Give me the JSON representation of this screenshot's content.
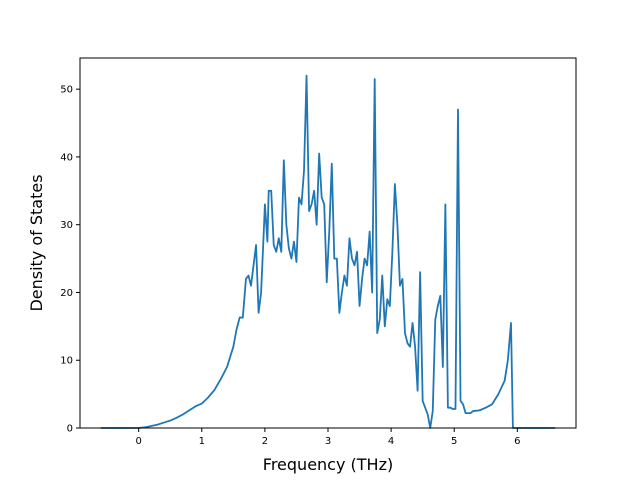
{
  "chart_data": {
    "type": "line",
    "title": "",
    "xlabel": "Frequency (THz)",
    "ylabel": "Density of States",
    "xlim": [
      -0.93,
      6.93
    ],
    "ylim": [
      0,
      54.6
    ],
    "xticks": [
      0,
      1,
      2,
      3,
      4,
      5,
      6
    ],
    "yticks": [
      0,
      10,
      20,
      30,
      40,
      50
    ],
    "grid": false,
    "legend": "none",
    "colors": {
      "line": "#1f77b4",
      "axes": "#000000",
      "background": "#ffffff"
    },
    "series": [
      {
        "color": "#1f77b4",
        "x": [
          -0.6,
          -0.2,
          0.0,
          0.1,
          0.2,
          0.3,
          0.4,
          0.5,
          0.6,
          0.7,
          0.8,
          0.9,
          1.0,
          1.1,
          1.2,
          1.3,
          1.4,
          1.5,
          1.55,
          1.6,
          1.65,
          1.7,
          1.74,
          1.78,
          1.82,
          1.86,
          1.9,
          1.94,
          1.98,
          2.0,
          2.04,
          2.06,
          2.1,
          2.14,
          2.18,
          2.22,
          2.26,
          2.3,
          2.34,
          2.38,
          2.42,
          2.46,
          2.5,
          2.54,
          2.58,
          2.62,
          2.66,
          2.7,
          2.74,
          2.78,
          2.82,
          2.86,
          2.9,
          2.94,
          2.98,
          3.02,
          3.06,
          3.1,
          3.14,
          3.18,
          3.22,
          3.26,
          3.3,
          3.34,
          3.38,
          3.42,
          3.46,
          3.5,
          3.54,
          3.58,
          3.62,
          3.66,
          3.7,
          3.74,
          3.78,
          3.82,
          3.86,
          3.9,
          3.94,
          3.98,
          4.02,
          4.06,
          4.1,
          4.14,
          4.18,
          4.22,
          4.26,
          4.3,
          4.34,
          4.38,
          4.42,
          4.46,
          4.5,
          4.54,
          4.58,
          4.62,
          4.66,
          4.7,
          4.74,
          4.78,
          4.82,
          4.86,
          4.9,
          4.94,
          4.98,
          5.02,
          5.06,
          5.1,
          5.14,
          5.18,
          5.22,
          5.26,
          5.3,
          5.4,
          5.5,
          5.6,
          5.7,
          5.8,
          5.85,
          5.9,
          5.93,
          5.97,
          6.0,
          6.3,
          6.6
        ],
        "y": [
          0,
          0,
          0,
          0.1,
          0.3,
          0.5,
          0.8,
          1.1,
          1.5,
          2.0,
          2.6,
          3.2,
          3.6,
          4.5,
          5.6,
          7.2,
          9.0,
          12.0,
          14.5,
          16.3,
          16.3,
          22.0,
          22.5,
          21.0,
          24.0,
          27.0,
          17.0,
          20.0,
          28.5,
          33.0,
          27.5,
          35.0,
          35.0,
          27.0,
          26.0,
          28.0,
          26.0,
          39.5,
          30.0,
          26.5,
          25.0,
          27.5,
          24.5,
          34.0,
          33.0,
          38.0,
          52.0,
          32.0,
          33.0,
          35.0,
          30.0,
          40.5,
          34.0,
          33.0,
          21.5,
          29.0,
          39.0,
          25.0,
          25.0,
          17.0,
          20.0,
          22.5,
          21.0,
          28.0,
          25.0,
          24.0,
          26.0,
          18.0,
          22.0,
          25.0,
          24.0,
          29.0,
          20.0,
          51.5,
          14.0,
          16.0,
          22.5,
          15.0,
          19.0,
          18.0,
          26.0,
          36.0,
          30.0,
          21.0,
          22.0,
          14.0,
          12.5,
          12.0,
          15.5,
          12.0,
          5.5,
          23.0,
          4.0,
          3.0,
          2.0,
          0.0,
          2.5,
          16.0,
          18.0,
          19.5,
          9.0,
          33.0,
          3.0,
          3.0,
          2.8,
          2.8,
          47.0,
          4.0,
          3.5,
          2.2,
          2.2,
          2.2,
          2.5,
          2.6,
          3.0,
          3.5,
          5.0,
          7.0,
          10.0,
          15.5,
          0.0,
          0.0,
          0.0,
          0.0,
          0.0
        ]
      }
    ]
  }
}
